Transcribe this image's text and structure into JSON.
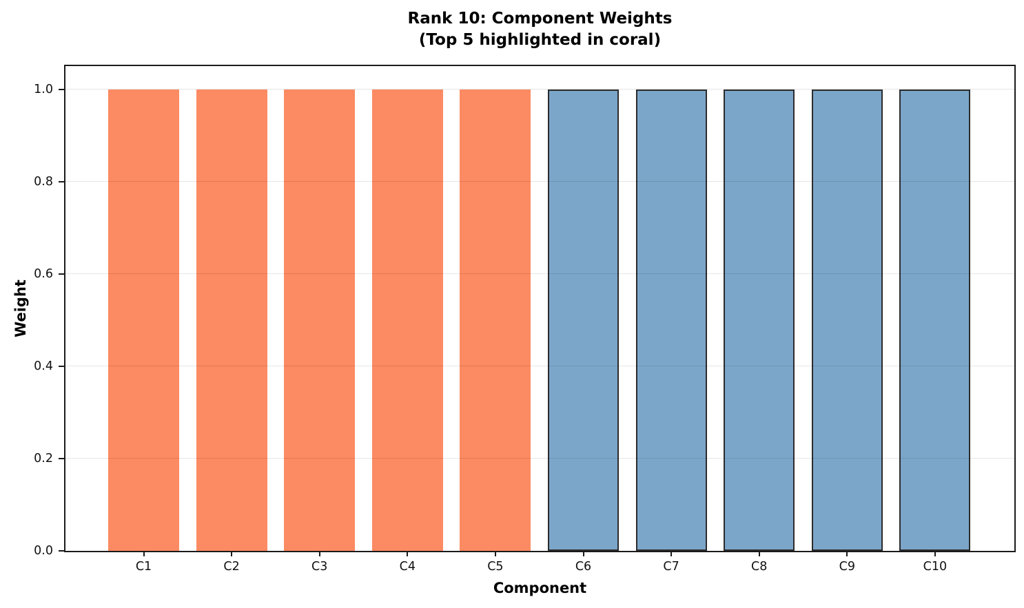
{
  "chart_data": {
    "type": "bar",
    "title_line1": "Rank 10: Component Weights",
    "title_line2": "(Top 5 highlighted in coral)",
    "categories": [
      "C1",
      "C2",
      "C3",
      "C4",
      "C5",
      "C6",
      "C7",
      "C8",
      "C9",
      "C10"
    ],
    "values": [
      1.0,
      1.0,
      1.0,
      1.0,
      1.0,
      1.0,
      1.0,
      1.0,
      1.0,
      1.0
    ],
    "xlabel": "Component",
    "ylabel": "Weight",
    "ylim": [
      0,
      1.05
    ],
    "yticks": [
      0.0,
      0.2,
      0.4,
      0.6,
      0.8,
      1.0
    ],
    "grid": "horizontal gridlines at y ticks, light gray, drawn over bars",
    "legend": "none",
    "highlight_top_n": 5,
    "colors": {
      "highlight_fill": "#FC8A62",
      "normal_fill": "#7CA6C9",
      "normal_edge": "#2B2B2B",
      "gridline": "rgba(0,0,0,0.10)",
      "spine": "#1a1a1a"
    }
  }
}
